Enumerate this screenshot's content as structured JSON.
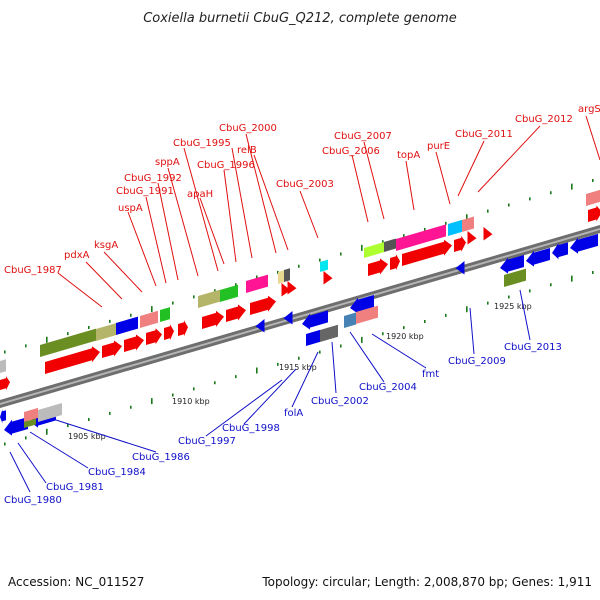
{
  "title": "Coxiella burnetii CbuG_Q212, complete genome",
  "footer": {
    "accession": "Accession: NC_011527",
    "summary": "Topology: circular; Length: 2,008,870 bp; Genes: 1,911"
  },
  "colors": {
    "forward_label": "#e01010",
    "reverse_label": "#1010c8",
    "backbone": "#888888",
    "tick": "#1a7a1a"
  },
  "scale_labels": [
    {
      "text": "1905 kbp"
    },
    {
      "text": "1910 kbp"
    },
    {
      "text": "1915 kbp"
    },
    {
      "text": "1920 kbp"
    },
    {
      "text": "1925 kbp"
    }
  ],
  "forward_labels": [
    {
      "text": "CbuG_1987"
    },
    {
      "text": "pdxA"
    },
    {
      "text": "ksgA"
    },
    {
      "text": "uspA"
    },
    {
      "text": "CbuG_1991"
    },
    {
      "text": "CbuG_1992"
    },
    {
      "text": "sppA"
    },
    {
      "text": "CbuG_1995"
    },
    {
      "text": "apaH"
    },
    {
      "text": "CbuG_1996"
    },
    {
      "text": "CbuG_2000"
    },
    {
      "text": "relB"
    },
    {
      "text": "CbuG_2003"
    },
    {
      "text": "CbuG_2007"
    },
    {
      "text": "CbuG_2006"
    },
    {
      "text": "topA"
    },
    {
      "text": "purE"
    },
    {
      "text": "CbuG_2011"
    },
    {
      "text": "CbuG_2012"
    },
    {
      "text": "argS"
    }
  ],
  "reverse_labels": [
    {
      "text": "CbuG_1980"
    },
    {
      "text": "CbuG_1981"
    },
    {
      "text": "CbuG_1984"
    },
    {
      "text": "CbuG_1986"
    },
    {
      "text": "CbuG_1997"
    },
    {
      "text": "CbuG_1998"
    },
    {
      "text": "folA"
    },
    {
      "text": "CbuG_2002"
    },
    {
      "text": "CbuG_2004"
    },
    {
      "text": "fmt"
    },
    {
      "text": "CbuG_2009"
    },
    {
      "text": "CbuG_2013"
    }
  ]
}
